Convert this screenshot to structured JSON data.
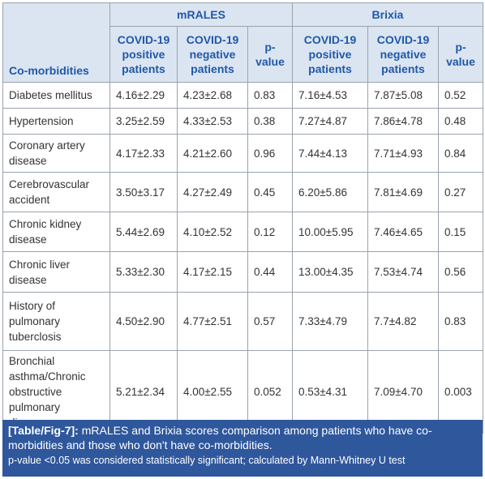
{
  "table": {
    "corner": "Co-morbidities",
    "groups": [
      "mRALES",
      "Brixia"
    ],
    "columns": [
      "COVID-19 positive patients",
      "COVID-19 negative patients",
      "p-value",
      "COVID-19 positive patients",
      "COVID-19 negative patients",
      "p-value"
    ],
    "rows": [
      [
        "Diabetes mellitus",
        "4.16±2.29",
        "4.23±2.68",
        "0.83",
        "7.16±4.53",
        "7.87±5.08",
        "0.52"
      ],
      [
        "Hypertension",
        "3.25±2.59",
        "4.33±2.53",
        "0.38",
        "7.27±4.87",
        "7.86±4.78",
        "0.48"
      ],
      [
        "Coronary artery disease",
        "4.17±2.33",
        "4.21±2.60",
        "0.96",
        "7.44±4.13",
        "7.71±4.93",
        "0.84"
      ],
      [
        "Cerebrovascular accident",
        "3.50±3.17",
        "4.27±2.49",
        "0.45",
        "6.20±5.86",
        "7.81±4.69",
        "0.27"
      ],
      [
        "Chronic kidney disease",
        "5.44±2.69",
        "4.10±2.52",
        "0.12",
        "10.00±5.95",
        "7.46±4.65",
        "0.15"
      ],
      [
        "Chronic liver disease",
        "5.33±2.30",
        "4.17±2.15",
        "0.44",
        "13.00±4.35",
        "7.53±4.74",
        "0.56"
      ],
      [
        "History of pulmonary tuberclosis",
        "4.50±2.90",
        "4.77±2.51",
        "0.57",
        "7.33±4.79",
        "7.7±4.82",
        "0.83"
      ],
      [
        "Bronchial asthma/Chronic obstructive pulmonary disease",
        "5.21±2.34",
        "4.00±2.55",
        "0.052",
        "0.53±4.31",
        "7.09±4.70",
        "0.003"
      ]
    ]
  },
  "caption": {
    "label": "[Table/Fig-7]:",
    "text": "mRALES and Brixia scores comparison among patients who have co-morbidities and those who don't have co-morbidities.",
    "note": "p-value <0.05 was considered statistically significant; calculated by Mann-Whitney U test"
  }
}
